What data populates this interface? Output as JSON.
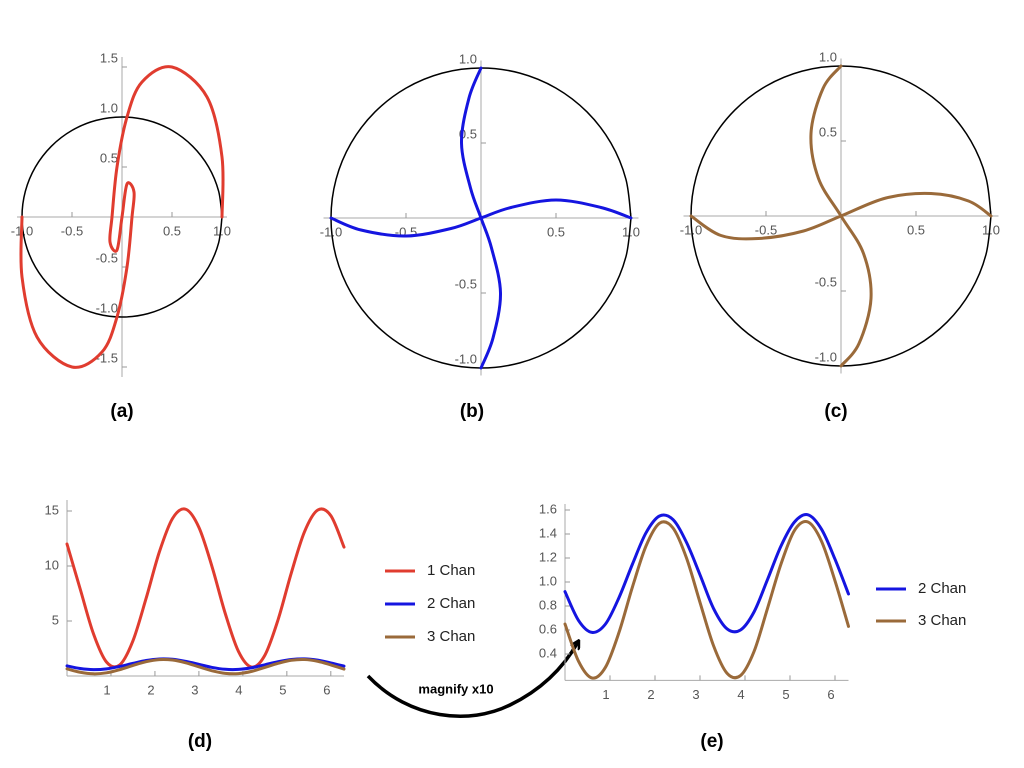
{
  "chart_data": [
    {
      "type": "line",
      "caption": "(a)",
      "xlim": [
        -1.05,
        1.05
      ],
      "ylim": [
        -1.6,
        1.6
      ],
      "xticks": [
        {
          "value": -1,
          "label": "-1.0"
        },
        -0.5,
        0.5,
        {
          "value": 1,
          "label": "1.0"
        }
      ],
      "yticks": [
        -1.5,
        {
          "value": -1,
          "label": "-1.0"
        },
        -0.5,
        0.5,
        {
          "value": 1,
          "label": "1.0"
        },
        1.5
      ],
      "series": [
        {
          "color": "#000000",
          "x": [
            1,
            0.966,
            0.866,
            0.707,
            0.5,
            0.259,
            0,
            -0.259,
            -0.5,
            -0.707,
            -0.866,
            -0.966,
            -1,
            -0.966,
            -0.866,
            -0.707,
            -0.5,
            -0.259,
            0,
            0.259,
            0.5,
            0.707,
            0.866,
            0.966,
            1
          ],
          "values": [
            0,
            0.259,
            0.5,
            0.707,
            0.866,
            0.966,
            1,
            0.966,
            0.866,
            0.707,
            0.5,
            0.259,
            0,
            -0.259,
            -0.5,
            -0.707,
            -0.866,
            -0.966,
            -1,
            -0.966,
            -0.866,
            -0.707,
            -0.5,
            -0.259,
            0
          ]
        },
        {
          "color": "#e03c2f",
          "x": [
            1,
            1,
            0.85,
            0.5,
            0.2,
            0.05,
            -0.05,
            -0.1,
            -0.12,
            -0.05,
            0,
            0.05,
            0.12,
            0.1,
            0.05,
            -0.05,
            -0.2,
            -0.5,
            -0.85,
            -1,
            -1
          ],
          "values": [
            0,
            0.6,
            1.2,
            1.5,
            1.35,
            1.0,
            0.5,
            0,
            -0.25,
            -0.33,
            0,
            0.33,
            0.25,
            0,
            -0.5,
            -1.0,
            -1.35,
            -1.5,
            -1.2,
            -0.6,
            0
          ]
        }
      ]
    },
    {
      "type": "line",
      "caption": "(b)",
      "xlim": [
        -1.05,
        1.05
      ],
      "ylim": [
        -1.05,
        1.05
      ],
      "xticks": [
        {
          "value": -1,
          "label": "-1.0"
        },
        -0.5,
        0.5,
        {
          "value": 1,
          "label": "1.0"
        }
      ],
      "yticks": [
        {
          "value": -1,
          "label": "-1.0"
        },
        -0.5,
        0.5,
        {
          "value": 1,
          "label": "1.0"
        }
      ],
      "series": [
        {
          "color": "#000000",
          "x": [
            1,
            0.966,
            0.866,
            0.707,
            0.5,
            0.259,
            0,
            -0.259,
            -0.5,
            -0.707,
            -0.866,
            -0.966,
            -1,
            -0.966,
            -0.866,
            -0.707,
            -0.5,
            -0.259,
            0,
            0.259,
            0.5,
            0.707,
            0.866,
            0.966,
            1
          ],
          "values": [
            0,
            0.259,
            0.5,
            0.707,
            0.866,
            0.966,
            1,
            0.966,
            0.866,
            0.707,
            0.5,
            0.259,
            0,
            -0.259,
            -0.5,
            -0.707,
            -0.866,
            -0.966,
            -1,
            -0.966,
            -0.866,
            -0.707,
            -0.5,
            -0.259,
            0
          ]
        },
        {
          "color": "#1515e0",
          "x": [
            -1,
            -0.8,
            -0.5,
            -0.2,
            0,
            0.2,
            0.5,
            0.8,
            1,
            null,
            0,
            -0.08,
            -0.13,
            -0.07,
            0,
            0.07,
            0.13,
            0.08,
            0
          ],
          "values": [
            0,
            -0.08,
            -0.12,
            -0.07,
            0,
            0.07,
            0.12,
            0.07,
            0,
            null,
            1,
            0.8,
            0.5,
            0.2,
            0,
            -0.2,
            -0.5,
            -0.8,
            -1
          ]
        }
      ]
    },
    {
      "type": "line",
      "caption": "(c)",
      "xlim": [
        -1.05,
        1.05
      ],
      "ylim": [
        -1.05,
        1.05
      ],
      "xticks": [
        {
          "value": -1,
          "label": "-1.0"
        },
        -0.5,
        0.5,
        {
          "value": 1,
          "label": "1.0"
        }
      ],
      "yticks": [
        {
          "value": -1,
          "label": "-1.0"
        },
        -0.5,
        0.5,
        {
          "value": 1,
          "label": "1.0"
        }
      ],
      "series": [
        {
          "color": "#000000",
          "x": [
            1,
            0.966,
            0.866,
            0.707,
            0.5,
            0.259,
            0,
            -0.259,
            -0.5,
            -0.707,
            -0.866,
            -0.966,
            -1,
            -0.966,
            -0.866,
            -0.707,
            -0.5,
            -0.259,
            0,
            0.259,
            0.5,
            0.707,
            0.866,
            0.966,
            1
          ],
          "values": [
            0,
            0.259,
            0.5,
            0.707,
            0.866,
            0.966,
            1,
            0.966,
            0.866,
            0.707,
            0.5,
            0.259,
            0,
            -0.259,
            -0.5,
            -0.707,
            -0.866,
            -0.966,
            -1,
            -0.966,
            -0.866,
            -0.707,
            -0.5,
            -0.259,
            0
          ]
        },
        {
          "color": "#9a6a3a",
          "x": [
            -1,
            -0.8,
            -0.55,
            -0.25,
            0,
            0.3,
            0.6,
            0.85,
            1,
            null,
            0,
            -0.12,
            -0.2,
            -0.15,
            0,
            0.15,
            0.2,
            0.12,
            0
          ],
          "values": [
            0,
            -0.13,
            -0.15,
            -0.1,
            0,
            0.12,
            0.15,
            0.1,
            0,
            null,
            1,
            0.85,
            0.55,
            0.25,
            0,
            -0.25,
            -0.55,
            -0.85,
            -1
          ]
        }
      ]
    },
    {
      "type": "line",
      "caption": "(d)",
      "annotation": "magnify x10",
      "legend": "right",
      "xlim": [
        0,
        6.3
      ],
      "ylim": [
        0,
        16
      ],
      "xticks": [
        1,
        2,
        3,
        4,
        5,
        6
      ],
      "yticks": [
        5,
        10,
        15
      ],
      "x": [
        0,
        0.3,
        0.6,
        0.9,
        1.2,
        1.5,
        1.8,
        2.1,
        2.4,
        2.7,
        3,
        3.3,
        3.6,
        3.9,
        4.2,
        4.5,
        4.8,
        5.1,
        5.4,
        5.7,
        6,
        6.3
      ],
      "series": [
        {
          "name": "1 Chan",
          "color": "#e03c2f",
          "values": [
            12.0,
            7.91,
            3.86,
            1.26,
            1.01,
            3.2,
            7.07,
            11.27,
            14.32,
            15.16,
            13.51,
            9.92,
            5.67,
            2.23,
            0.81,
            1.89,
            5.11,
            9.35,
            13.1,
            15.08,
            14.58,
            11.72
          ]
        },
        {
          "name": "2 Chan",
          "color": "#1515e0",
          "values": [
            0.92,
            0.68,
            0.58,
            0.65,
            0.87,
            1.15,
            1.41,
            1.55,
            1.52,
            1.33,
            1.06,
            0.78,
            0.61,
            0.6,
            0.75,
            1.02,
            1.3,
            1.5,
            1.56,
            1.44,
            1.19,
            0.9
          ]
        },
        {
          "name": "3 Chan",
          "color": "#9a6a3a",
          "values": [
            0.65,
            0.34,
            0.2,
            0.29,
            0.58,
            0.96,
            1.3,
            1.49,
            1.45,
            1.2,
            0.83,
            0.47,
            0.24,
            0.22,
            0.42,
            0.78,
            1.15,
            1.43,
            1.5,
            1.34,
            1.01,
            0.63
          ]
        }
      ]
    },
    {
      "type": "line",
      "caption": "(e)",
      "legend": "right",
      "xlim": [
        0,
        6.3
      ],
      "ylim": [
        0.18,
        1.65
      ],
      "xticks": [
        1,
        2,
        3,
        4,
        5,
        6
      ],
      "yticks": [
        0.4,
        0.6,
        0.8,
        {
          "value": 1,
          "label": "1.0"
        },
        1.2,
        1.4,
        1.6
      ],
      "x": [
        0,
        0.3,
        0.6,
        0.9,
        1.2,
        1.5,
        1.8,
        2.1,
        2.4,
        2.7,
        3,
        3.3,
        3.6,
        3.9,
        4.2,
        4.5,
        4.8,
        5.1,
        5.4,
        5.7,
        6,
        6.3
      ],
      "series": [
        {
          "name": "2 Chan",
          "color": "#1515e0",
          "values": [
            0.92,
            0.68,
            0.58,
            0.65,
            0.87,
            1.15,
            1.41,
            1.55,
            1.52,
            1.33,
            1.06,
            0.78,
            0.61,
            0.6,
            0.75,
            1.02,
            1.3,
            1.5,
            1.56,
            1.44,
            1.19,
            0.9
          ]
        },
        {
          "name": "3 Chan",
          "color": "#9a6a3a",
          "values": [
            0.65,
            0.34,
            0.2,
            0.29,
            0.58,
            0.96,
            1.3,
            1.49,
            1.45,
            1.2,
            0.83,
            0.47,
            0.24,
            0.22,
            0.42,
            0.78,
            1.15,
            1.43,
            1.5,
            1.34,
            1.01,
            0.63
          ]
        }
      ]
    }
  ]
}
